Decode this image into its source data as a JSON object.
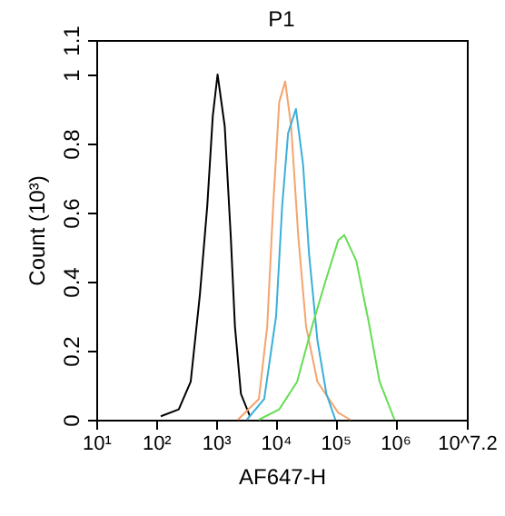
{
  "chart_data": {
    "type": "line",
    "title": "P1",
    "xlabel": "AF647-H",
    "ylabel": "Count (10³)",
    "log": "x",
    "xlim": [
      10,
      15848932
    ],
    "ylim": [
      0,
      1.1
    ],
    "grid": false,
    "legend": false,
    "marker": "none",
    "line_style": "solid",
    "xticks": [
      {
        "value": 10,
        "label": "10¹"
      },
      {
        "value": 100,
        "label": "10²"
      },
      {
        "value": 1000,
        "label": "10³"
      },
      {
        "value": 10000,
        "label": "10⁴"
      },
      {
        "value": 100000,
        "label": "10⁵"
      },
      {
        "value": 1000000,
        "label": "10⁶"
      },
      {
        "value": 15848932,
        "label": "10^7.2"
      }
    ],
    "yticks": [
      0,
      0.2,
      0.4,
      0.6,
      0.8,
      1,
      1.1
    ],
    "series": [
      {
        "color": "#000000",
        "x": [
          120,
          240,
          380,
          540,
          720,
          890,
          1070,
          1410,
          1780,
          2090,
          2630,
          3720
        ],
        "values": [
          0.01,
          0.03,
          0.11,
          0.36,
          0.62,
          0.88,
          1.0,
          0.85,
          0.53,
          0.27,
          0.075,
          0.01
        ]
      },
      {
        "color": "#f5a46e",
        "x": [
          2340,
          5250,
          7240,
          9120,
          11500,
          14500,
          18200,
          24000,
          32400,
          50100,
          112000,
          178000
        ],
        "values": [
          0,
          0.06,
          0.27,
          0.62,
          0.92,
          0.98,
          0.85,
          0.53,
          0.27,
          0.11,
          0.02,
          0
        ]
      },
      {
        "color": "#3ab0d8",
        "x": [
          3310,
          6460,
          10200,
          12900,
          16200,
          21900,
          28800,
          36300,
          50100,
          70800,
          100000
        ],
        "values": [
          0,
          0.06,
          0.3,
          0.62,
          0.83,
          0.9,
          0.74,
          0.48,
          0.23,
          0.075,
          0
        ]
      },
      {
        "color": "#66dd55",
        "x": [
          5250,
          11500,
          22900,
          40700,
          70800,
          112000,
          141000,
          224000,
          355000,
          550000,
          977000
        ],
        "values": [
          0,
          0.03,
          0.11,
          0.27,
          0.41,
          0.52,
          0.535,
          0.46,
          0.29,
          0.11,
          0
        ]
      }
    ]
  }
}
